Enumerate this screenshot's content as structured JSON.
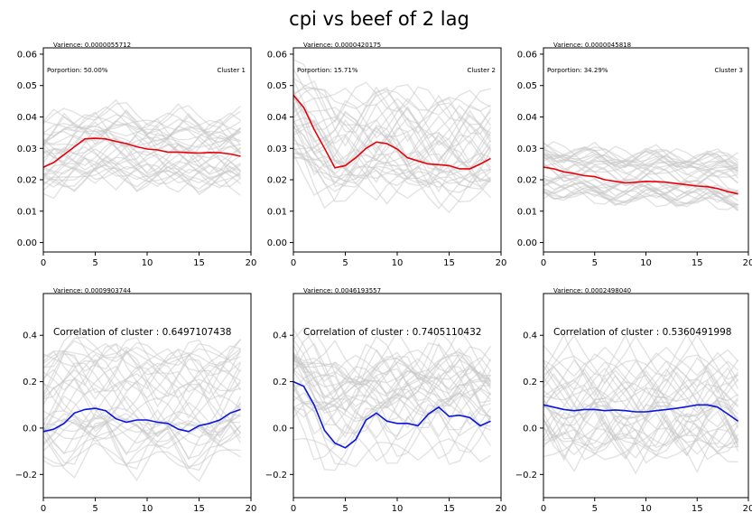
{
  "figure_title": "cpi vs beef of 2 lag",
  "chart_data": [
    {
      "type": "line",
      "cluster_label": "Cluster 1",
      "variance_text": "Varience: 0.0000055712",
      "proportion_text": "Porportion: 50.00%",
      "xlim": [
        0,
        20
      ],
      "ylim": [
        -0.003,
        0.062
      ],
      "xticks": [
        0,
        5,
        10,
        15,
        20
      ],
      "yticks": [
        "0.00",
        "0.01",
        "0.02",
        "0.03",
        "0.04",
        "0.05",
        "0.06"
      ],
      "background_band": [
        0.012,
        0.05
      ],
      "background_color": "#c8c8c8",
      "series": [
        {
          "color": "#e8000b",
          "x": [
            0,
            1,
            2,
            3,
            4,
            5,
            6,
            7,
            8,
            9,
            10,
            11,
            12,
            13,
            14,
            15,
            16,
            17,
            18,
            19
          ],
          "values": [
            0.024,
            0.0255,
            0.028,
            0.0305,
            0.033,
            0.0332,
            0.033,
            0.0322,
            0.0315,
            0.0305,
            0.0298,
            0.0295,
            0.0288,
            0.0288,
            0.0286,
            0.0285,
            0.0287,
            0.0286,
            0.0282,
            0.0275
          ]
        }
      ]
    },
    {
      "type": "line",
      "cluster_label": "Cluster 2",
      "variance_text": "Varience: 0.0000420175",
      "proportion_text": "Porportion: 15.71%",
      "xlim": [
        0,
        20
      ],
      "ylim": [
        -0.003,
        0.062
      ],
      "xticks": [
        0,
        5,
        10,
        15,
        20
      ],
      "yticks": [
        "0.00",
        "0.01",
        "0.02",
        "0.03",
        "0.04",
        "0.05",
        "0.06"
      ],
      "background_band": [
        0.005,
        0.06
      ],
      "background_color": "#c8c8c8",
      "series": [
        {
          "color": "#e8000b",
          "x": [
            0,
            1,
            2,
            3,
            4,
            5,
            6,
            7,
            8,
            9,
            10,
            11,
            12,
            13,
            14,
            15,
            16,
            17,
            18,
            19
          ],
          "values": [
            0.047,
            0.043,
            0.036,
            0.03,
            0.0238,
            0.0245,
            0.027,
            0.03,
            0.032,
            0.0315,
            0.0298,
            0.027,
            0.026,
            0.025,
            0.0248,
            0.0245,
            0.0235,
            0.0235,
            0.025,
            0.0268
          ]
        }
      ]
    },
    {
      "type": "line",
      "cluster_label": "Cluster 3",
      "variance_text": "Varience: 0.0000045818",
      "proportion_text": "Porportion: 34.29%",
      "xlim": [
        0,
        20
      ],
      "ylim": [
        -0.003,
        0.062
      ],
      "xticks": [
        0,
        5,
        10,
        15,
        20
      ],
      "yticks": [
        "0.00",
        "0.01",
        "0.02",
        "0.03",
        "0.04",
        "0.05",
        "0.06"
      ],
      "background_band": [
        0.01,
        0.035
      ],
      "background_color": "#c8c8c8",
      "series": [
        {
          "color": "#e8000b",
          "x": [
            0,
            1,
            2,
            3,
            4,
            5,
            6,
            7,
            8,
            9,
            10,
            11,
            12,
            13,
            14,
            15,
            16,
            17,
            18,
            19
          ],
          "values": [
            0.024,
            0.0235,
            0.0225,
            0.022,
            0.0213,
            0.021,
            0.02,
            0.0195,
            0.019,
            0.0192,
            0.0195,
            0.0194,
            0.0192,
            0.0188,
            0.0184,
            0.018,
            0.0178,
            0.0172,
            0.0162,
            0.0155
          ]
        }
      ]
    },
    {
      "type": "line",
      "variance_text": "Varience: 0.0009903744",
      "correlation_text": "Correlation of cluster : 0.6497107438",
      "xlim": [
        0,
        20
      ],
      "ylim": [
        -0.3,
        0.58
      ],
      "xticks": [
        0,
        5,
        10,
        15,
        20
      ],
      "yticks": [
        "−0.2",
        "0.0",
        "0.2",
        "0.4"
      ],
      "background_band": [
        -0.25,
        0.55
      ],
      "background_color": "#c8c8c8",
      "series": [
        {
          "color": "#0a14e0",
          "x": [
            0,
            1,
            2,
            3,
            4,
            5,
            6,
            7,
            8,
            9,
            10,
            11,
            12,
            13,
            14,
            15,
            16,
            17,
            18,
            19
          ],
          "values": [
            -0.015,
            -0.005,
            0.02,
            0.065,
            0.08,
            0.085,
            0.075,
            0.04,
            0.025,
            0.035,
            0.035,
            0.025,
            0.02,
            -0.005,
            -0.015,
            0.01,
            0.02,
            0.035,
            0.065,
            0.08
          ]
        }
      ]
    },
    {
      "type": "line",
      "variance_text": "Varience: 0.0046193557",
      "correlation_text": "Correlation of cluster : 0.7405110432",
      "xlim": [
        0,
        20
      ],
      "ylim": [
        -0.3,
        0.58
      ],
      "xticks": [
        0,
        5,
        10,
        15,
        20
      ],
      "yticks": [
        "−0.2",
        "0.0",
        "0.2",
        "0.4"
      ],
      "background_band": [
        -0.25,
        0.55
      ],
      "background_color": "#c8c8c8",
      "series": [
        {
          "color": "#0a14e0",
          "x": [
            0,
            1,
            2,
            3,
            4,
            5,
            6,
            7,
            8,
            9,
            10,
            11,
            12,
            13,
            14,
            15,
            16,
            17,
            18,
            19
          ],
          "values": [
            0.2,
            0.18,
            0.1,
            -0.01,
            -0.065,
            -0.085,
            -0.05,
            0.035,
            0.065,
            0.03,
            0.02,
            0.02,
            0.01,
            0.06,
            0.09,
            0.05,
            0.055,
            0.045,
            0.01,
            0.03
          ]
        }
      ]
    },
    {
      "type": "line",
      "variance_text": "Varience: 0.0002498040",
      "correlation_text": "Correlation of cluster : 0.5360491998",
      "xlim": [
        0,
        20
      ],
      "ylim": [
        -0.3,
        0.58
      ],
      "xticks": [
        0,
        5,
        10,
        15,
        20
      ],
      "yticks": [
        "−0.2",
        "0.0",
        "0.2",
        "0.4"
      ],
      "background_band": [
        -0.25,
        0.55
      ],
      "background_color": "#c8c8c8",
      "series": [
        {
          "color": "#0a14e0",
          "x": [
            0,
            1,
            2,
            3,
            4,
            5,
            6,
            7,
            8,
            9,
            10,
            11,
            12,
            13,
            14,
            15,
            16,
            17,
            18,
            19
          ],
          "values": [
            0.1,
            0.09,
            0.08,
            0.075,
            0.08,
            0.08,
            0.075,
            0.078,
            0.075,
            0.07,
            0.07,
            0.075,
            0.08,
            0.085,
            0.092,
            0.1,
            0.1,
            0.09,
            0.06,
            0.03
          ]
        }
      ]
    }
  ]
}
